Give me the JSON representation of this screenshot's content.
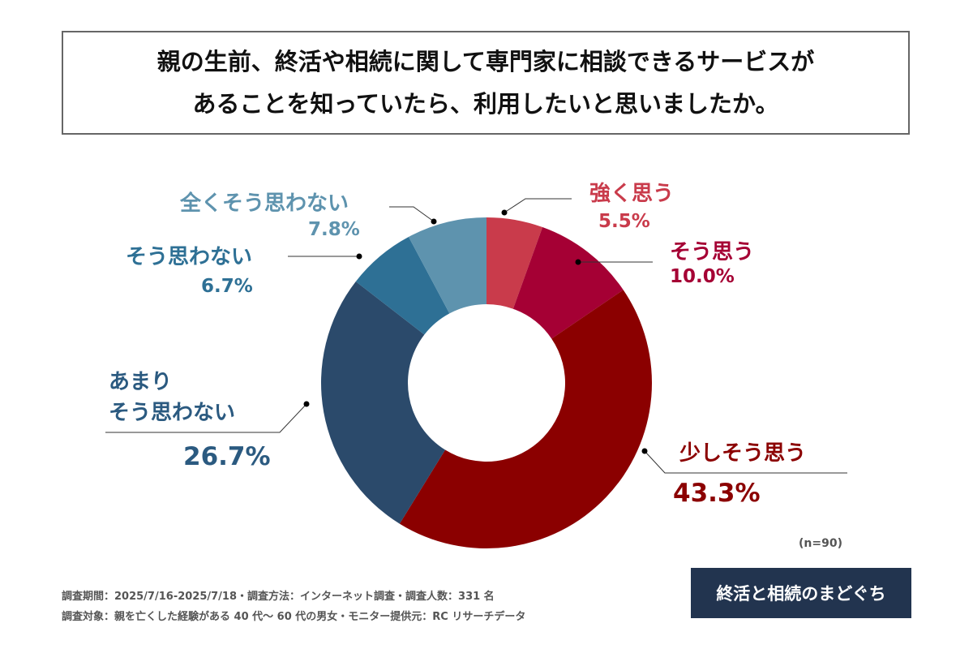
{
  "title": {
    "line1": "親の生前、終活や相続に関して専門家に相談できるサービスが",
    "line2": "あることを知っていたら、利用したいと思いましたか。"
  },
  "chart_data": {
    "type": "pie",
    "donut": true,
    "categories": [
      "強く思う",
      "そう思う",
      "少しそう思う",
      "あまりそう思わない",
      "そう思わない",
      "全くそう思わない"
    ],
    "values": [
      5.5,
      10.0,
      43.3,
      26.7,
      6.7,
      7.8
    ],
    "labels": [
      "5.5%",
      "10.0%",
      "43.3%",
      "26.7%",
      "6.7%",
      "7.8%"
    ],
    "colors": [
      "#c93b4b",
      "#a50034",
      "#8b0000",
      "#2b4a6b",
      "#2e7095",
      "#5e93ae"
    ],
    "label_lines": {
      "a_lot": "あまり",
      "a_lot_2": "そう思わない"
    }
  },
  "sample": "(n=90)",
  "footer": {
    "line1": "調査期間：2025/7/16-2025/7/18・調査方法：インターネット調査・調査人数：331 名",
    "line2": "調査対象：親を亡くした経験がある 40 代～ 60 代の男女・モニター提供元：RC リサーチデータ"
  },
  "logo": "終活と相続のまどぐち"
}
